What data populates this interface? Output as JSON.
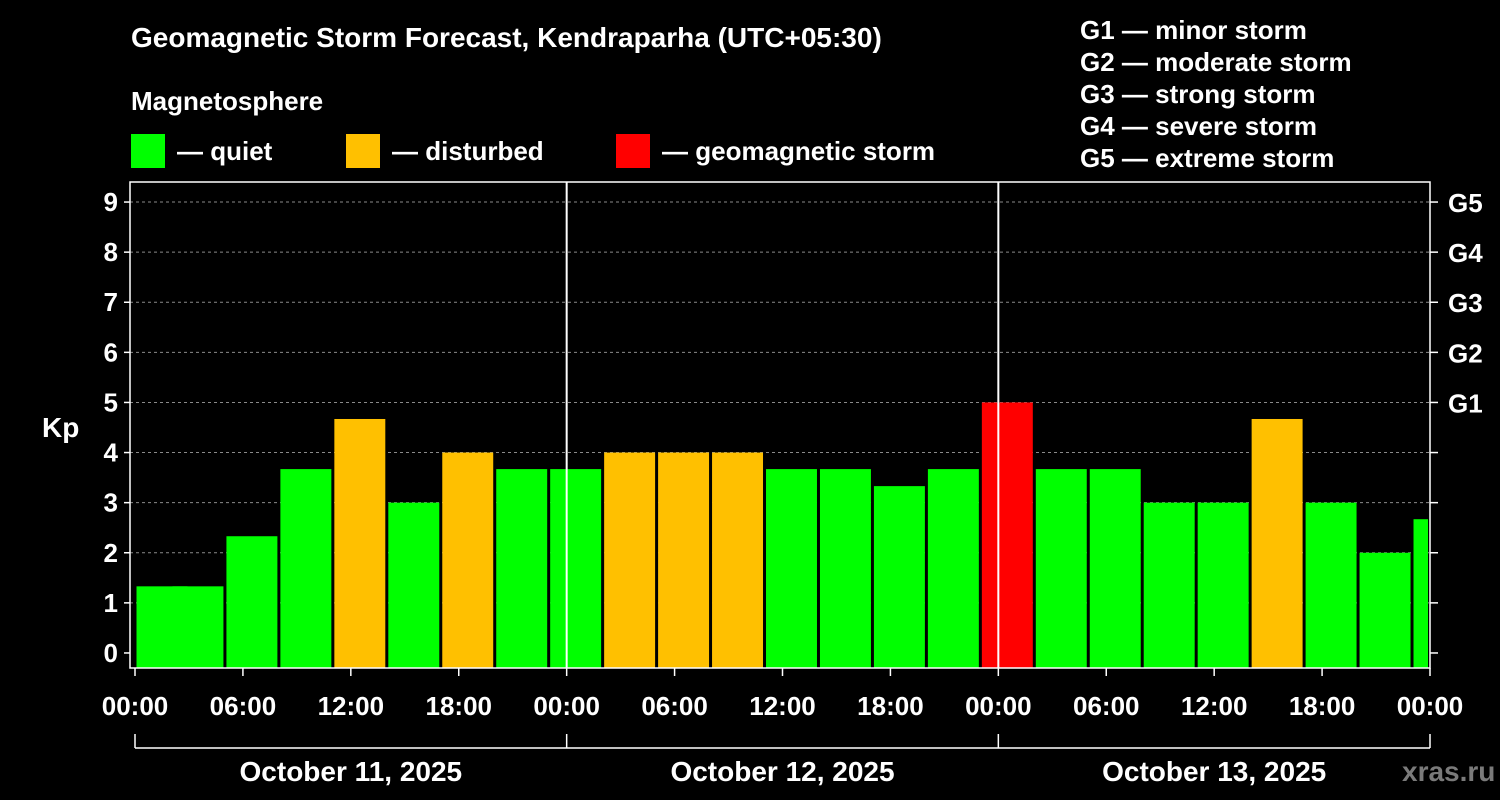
{
  "title": "Geomagnetic Storm Forecast, Kendraparha (UTC+05:30)",
  "subtitle": "Magnetosphere",
  "legend": [
    {
      "label": "— quiet",
      "color": "#00ff00"
    },
    {
      "label": "— disturbed",
      "color": "#ffc000"
    },
    {
      "label": "— geomagnetic storm",
      "color": "#ff0000"
    }
  ],
  "g_legend": [
    "G1 — minor storm",
    "G2 — moderate storm",
    "G3 — strong storm",
    "G4 — severe storm",
    "G5 — extreme storm"
  ],
  "watermark": "xras.ru",
  "chart_data": {
    "type": "bar",
    "ylabel": "Kp",
    "ylim": [
      -0.3,
      9.4
    ],
    "y_ticks": [
      0,
      1,
      2,
      3,
      4,
      5,
      6,
      7,
      8,
      9
    ],
    "right_labels": [
      {
        "value": 5,
        "label": "G1"
      },
      {
        "value": 6,
        "label": "G2"
      },
      {
        "value": 7,
        "label": "G3"
      },
      {
        "value": 8,
        "label": "G4"
      },
      {
        "value": 9,
        "label": "G5"
      }
    ],
    "x_range_hours": [
      0,
      72
    ],
    "x_tick_labels": [
      "00:00",
      "06:00",
      "12:00",
      "18:00",
      "00:00",
      "06:00",
      "12:00",
      "18:00",
      "00:00",
      "06:00",
      "12:00",
      "18:00",
      "00:00"
    ],
    "days": [
      "October 11, 2025",
      "October 12, 2025",
      "October 13, 2025"
    ],
    "bars": [
      {
        "start": 0,
        "kp": 1.33,
        "level": "quiet"
      },
      {
        "start": 2,
        "kp": 1.33,
        "level": "quiet"
      },
      {
        "start": 5,
        "kp": 2.33,
        "level": "quiet"
      },
      {
        "start": 8,
        "kp": 3.67,
        "level": "quiet"
      },
      {
        "start": 11,
        "kp": 4.67,
        "level": "disturbed"
      },
      {
        "start": 14,
        "kp": 3.0,
        "level": "quiet"
      },
      {
        "start": 17,
        "kp": 4.0,
        "level": "disturbed"
      },
      {
        "start": 20,
        "kp": 3.67,
        "level": "quiet"
      },
      {
        "start": 23,
        "kp": 3.67,
        "level": "quiet"
      },
      {
        "start": 26,
        "kp": 4.0,
        "level": "disturbed"
      },
      {
        "start": 29,
        "kp": 4.0,
        "level": "disturbed"
      },
      {
        "start": 32,
        "kp": 4.0,
        "level": "disturbed"
      },
      {
        "start": 35,
        "kp": 3.67,
        "level": "quiet"
      },
      {
        "start": 38,
        "kp": 3.67,
        "level": "quiet"
      },
      {
        "start": 41,
        "kp": 3.33,
        "level": "quiet"
      },
      {
        "start": 44,
        "kp": 3.67,
        "level": "quiet"
      },
      {
        "start": 47,
        "kp": 5.0,
        "level": "storm"
      },
      {
        "start": 50,
        "kp": 3.67,
        "level": "quiet"
      },
      {
        "start": 53,
        "kp": 3.67,
        "level": "quiet"
      },
      {
        "start": 56,
        "kp": 3.0,
        "level": "quiet"
      },
      {
        "start": 59,
        "kp": 3.0,
        "level": "quiet"
      },
      {
        "start": 62,
        "kp": 4.67,
        "level": "disturbed"
      },
      {
        "start": 65,
        "kp": 3.0,
        "level": "quiet"
      },
      {
        "start": 68,
        "kp": 2.0,
        "level": "quiet"
      },
      {
        "start": 71,
        "kp": 2.67,
        "level": "quiet"
      }
    ],
    "colors": {
      "quiet": "#00ff00",
      "disturbed": "#ffc000",
      "storm": "#ff0000"
    }
  }
}
